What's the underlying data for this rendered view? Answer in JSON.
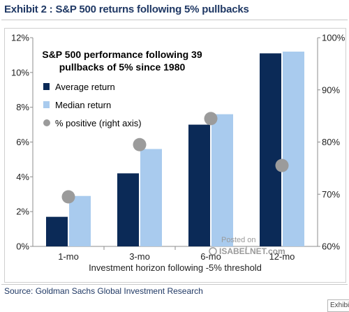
{
  "header": {
    "title": "Exhibit 2 : S&P 500 returns following 5% pullbacks"
  },
  "footer": {
    "source": "Source: Goldman Sachs Global Investment Research"
  },
  "side_tab": {
    "text": "Exhibi"
  },
  "watermark": {
    "line1": "Posted on",
    "line2": "ISABELNET.com"
  },
  "colors": {
    "average": "#0b2a57",
    "median": "#a9cbee",
    "positive": "#9b9b9b"
  },
  "chart_data": {
    "type": "bar",
    "title": "S&P 500 performance following 39 pullbacks of 5% since 1980",
    "title_lines": [
      "S&P 500 performance following 39",
      "pullbacks of 5% since 1980"
    ],
    "xlabel": "Investment horizon following -5% threshold",
    "categories": [
      "1-mo",
      "3-mo",
      "6-mo",
      "12-mo"
    ],
    "series": [
      {
        "name": "Average return",
        "type": "bar",
        "axis": "left",
        "values": [
          1.7,
          4.2,
          7.0,
          11.1
        ]
      },
      {
        "name": "Median return",
        "type": "bar",
        "axis": "left",
        "values": [
          2.9,
          5.6,
          7.6,
          11.2
        ]
      },
      {
        "name": "% positive (right axis)",
        "type": "scatter",
        "axis": "right",
        "values": [
          69.5,
          79.5,
          84.5,
          75.5
        ]
      }
    ],
    "ylim": [
      0,
      12
    ],
    "yticks": [
      "0%",
      "2%",
      "4%",
      "6%",
      "8%",
      "10%",
      "12%"
    ],
    "ylim_right": [
      60,
      100
    ],
    "yticks_right": [
      "60%",
      "70%",
      "80%",
      "90%",
      "100%"
    ],
    "legend_position": "top-left",
    "grid": false
  }
}
